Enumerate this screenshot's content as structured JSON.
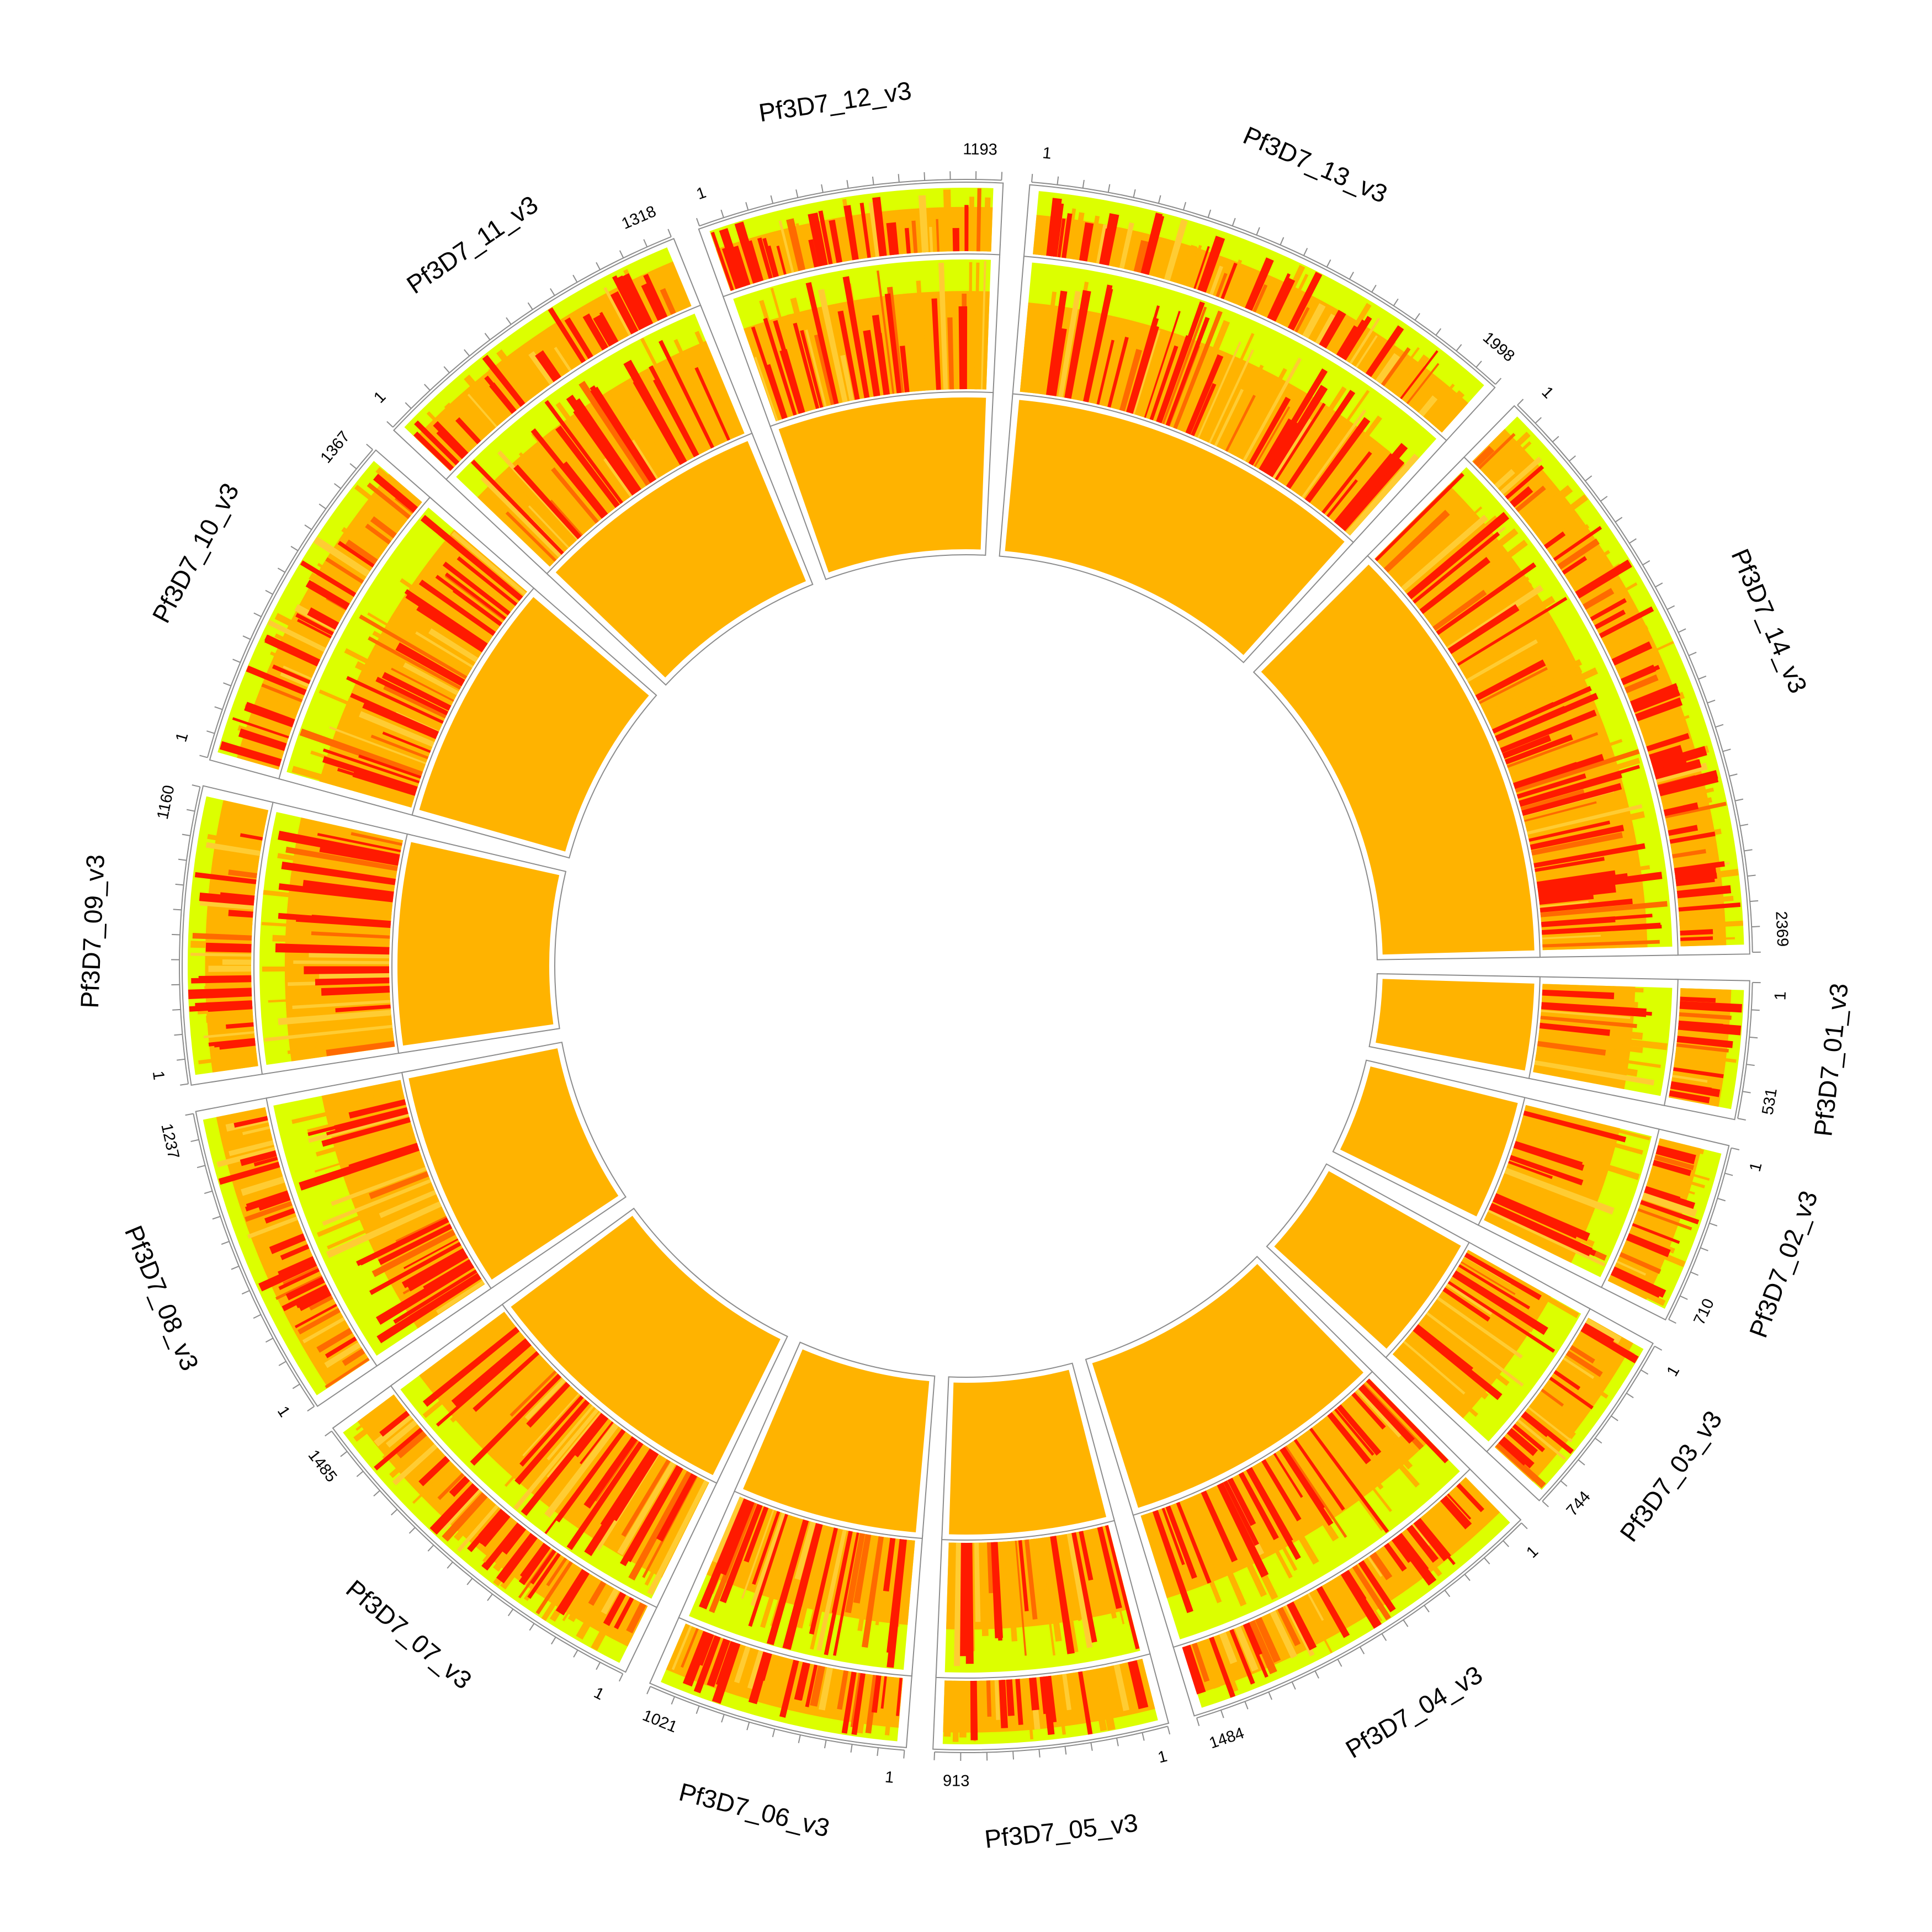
{
  "figure": {
    "type": "circos",
    "colors": {
      "background": "#ffffff",
      "outline": "#8c8c8c",
      "axis": "#8c8c8c",
      "yellow": "#dcff00",
      "light_orange": "#ffcc33",
      "orange": "#ffb300",
      "dark_orange": "#ff6a00",
      "red": "#ff1a00"
    }
  },
  "chromosomes": [
    {
      "name": "Pf3D7_01_v3",
      "start": "1",
      "end": "531",
      "length": 531,
      "seed": 11
    },
    {
      "name": "Pf3D7_02_v3",
      "start": "1",
      "end": "710",
      "length": 710,
      "seed": 23
    },
    {
      "name": "Pf3D7_03_v3",
      "start": "1",
      "end": "744",
      "length": 744,
      "seed": 37
    },
    {
      "name": "Pf3D7_04_v3",
      "start": "1",
      "end": "1484",
      "length": 1484,
      "seed": 41
    },
    {
      "name": "Pf3D7_05_v3",
      "start": "1",
      "end": "913",
      "length": 913,
      "seed": 53
    },
    {
      "name": "Pf3D7_06_v3",
      "start": "1",
      "end": "1021",
      "length": 1021,
      "seed": 67
    },
    {
      "name": "Pf3D7_07_v3",
      "start": "1",
      "end": "1485",
      "length": 1485,
      "seed": 71
    },
    {
      "name": "Pf3D7_08_v3",
      "start": "1",
      "end": "1237",
      "length": 1237,
      "seed": 83
    },
    {
      "name": "Pf3D7_09_v3",
      "start": "1",
      "end": "1160",
      "length": 1160,
      "seed": 97
    },
    {
      "name": "Pf3D7_10_v3",
      "start": "1",
      "end": "1367",
      "length": 1367,
      "seed": 101
    },
    {
      "name": "Pf3D7_11_v3",
      "start": "1",
      "end": "1318",
      "length": 1318,
      "seed": 113
    },
    {
      "name": "Pf3D7_12_v3",
      "start": "1",
      "end": "1193",
      "length": 1193,
      "seed": 127
    },
    {
      "name": "Pf3D7_13_v3",
      "start": "1",
      "end": "1998",
      "length": 1998,
      "seed": 131
    },
    {
      "name": "Pf3D7_14_v3",
      "start": "1",
      "end": "2369",
      "length": 2369,
      "seed": 149
    }
  ],
  "tracks": [
    {
      "name": "outer-track",
      "style": "stacked-mosaic"
    },
    {
      "name": "middle-track",
      "style": "stacked-mosaic"
    },
    {
      "name": "inner-track",
      "style": "near-uniform"
    }
  ]
}
